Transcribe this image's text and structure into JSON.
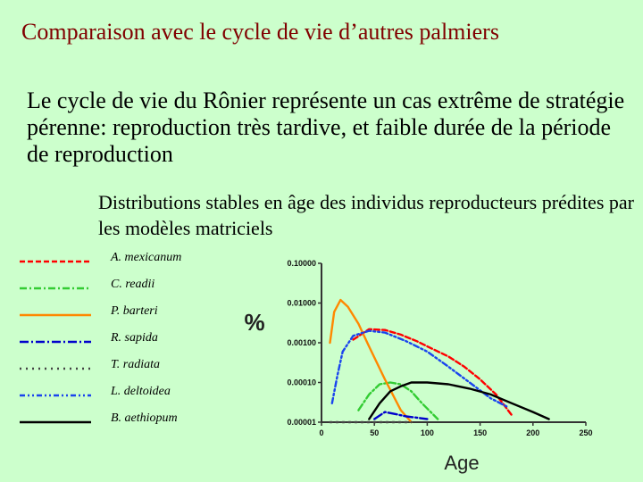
{
  "slide": {
    "title": "Comparaison avec le cycle de vie d’autres palmiers",
    "body": "Le cycle de vie du Rônier représente un cas  extrême de stratégie pérenne: reproduction très tardive, et faible durée de la période de reproduction",
    "subtitle": "Distributions stables en âge des individus reproducteurs prédites par les modèles matriciels"
  },
  "chart_data": {
    "type": "line",
    "title": "",
    "xlabel": "Age",
    "ylabel": "%",
    "xlim": [
      0,
      250
    ],
    "ylim": [
      1e-05,
      0.1
    ],
    "yscale": "log",
    "x_ticks": [
      "0",
      "50",
      "100",
      "150",
      "200",
      "250"
    ],
    "x_tick_values": [
      0,
      50,
      100,
      150,
      200,
      250
    ],
    "y_ticks": [
      "0.00001",
      "0.00010",
      "0.00100",
      "0.01000",
      "0.10000"
    ],
    "y_tick_values": [
      1e-05,
      0.0001,
      0.001,
      0.01,
      0.1
    ],
    "grid": false,
    "legend_position": "left",
    "series": [
      {
        "name": "A. mexicanum",
        "color": "#ff0000",
        "dash": "6,3",
        "x": [
          30,
          45,
          60,
          75,
          90,
          105,
          120,
          135,
          150,
          165,
          180
        ],
        "y": [
          0.0012,
          0.0022,
          0.0021,
          0.0016,
          0.0011,
          0.0007,
          0.00045,
          0.00025,
          0.00012,
          5e-05,
          1.5e-05
        ]
      },
      {
        "name": "C. readii",
        "color": "#33cc33",
        "dash": "8,3,2,3",
        "x": [
          35,
          45,
          55,
          65,
          75,
          85,
          95,
          110
        ],
        "y": [
          2e-05,
          5e-05,
          9e-05,
          0.0001,
          9e-05,
          6e-05,
          3e-05,
          1.2e-05
        ]
      },
      {
        "name": "P. barteri",
        "color": "#ff8800",
        "dash": "",
        "x": [
          8,
          12,
          18,
          25,
          35,
          45,
          60,
          75,
          85
        ],
        "y": [
          0.001,
          0.006,
          0.012,
          0.008,
          0.003,
          0.0008,
          0.00012,
          2e-05,
          1e-05
        ]
      },
      {
        "name": "R.  sapida",
        "color": "#0000cc",
        "dash": "10,3,2,3",
        "x": [
          50,
          60,
          70,
          80,
          90,
          100
        ],
        "y": [
          1.2e-05,
          1.8e-05,
          1.6e-05,
          1.4e-05,
          1.3e-05,
          1.2e-05
        ]
      },
      {
        "name": "T. radiata",
        "color": "#444444",
        "dash": "2,5",
        "x": [
          8,
          25,
          45,
          65,
          85
        ],
        "y": [
          1e-05,
          1e-05,
          1e-05,
          1e-05,
          1e-05
        ]
      },
      {
        "name": "L. deltoidea",
        "color": "#1a44ee",
        "dash": "6,3,2,3,2,3",
        "x": [
          10,
          15,
          20,
          30,
          45,
          60,
          80,
          100,
          120,
          140,
          160,
          175
        ],
        "y": [
          3e-05,
          0.00015,
          0.0006,
          0.0015,
          0.002,
          0.0018,
          0.0011,
          0.0006,
          0.00025,
          0.0001,
          4e-05,
          2.5e-05
        ]
      },
      {
        "name": "B. aethiopum",
        "color": "#000000",
        "dash": "",
        "x": [
          45,
          55,
          65,
          75,
          85,
          100,
          120,
          140,
          160,
          180,
          200,
          215
        ],
        "y": [
          1.2e-05,
          3e-05,
          6e-05,
          8e-05,
          0.0001,
          0.0001,
          9e-05,
          7e-05,
          5e-05,
          3e-05,
          1.8e-05,
          1.2e-05
        ]
      }
    ]
  }
}
